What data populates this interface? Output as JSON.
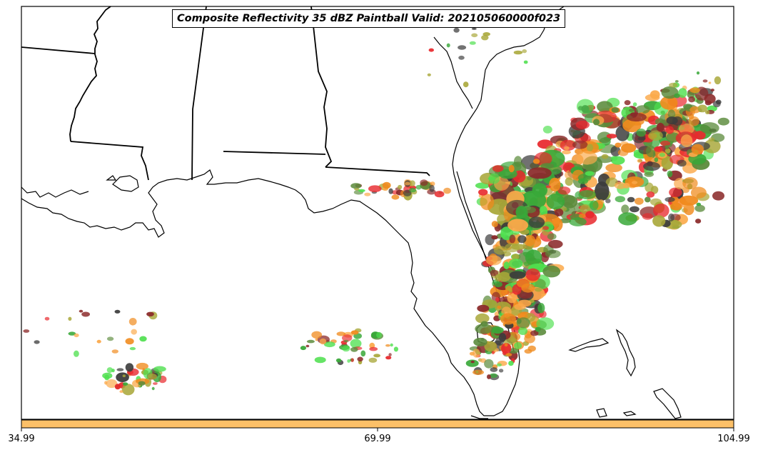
{
  "map": {
    "title": "Composite Reflectivity 35 dBZ Paintball Valid: 202105060000f023",
    "paintball_colors": [
      "#e8292d",
      "#f08a1c",
      "#fba94a",
      "#a8a738",
      "#38a838",
      "#4fe04f",
      "#3c3c3c",
      "#8b2a2a",
      "#5a8a3a"
    ],
    "colorbar": {
      "color": "#fcc068",
      "ticks": [
        "34.99",
        "69.99",
        "104.99"
      ]
    }
  }
}
